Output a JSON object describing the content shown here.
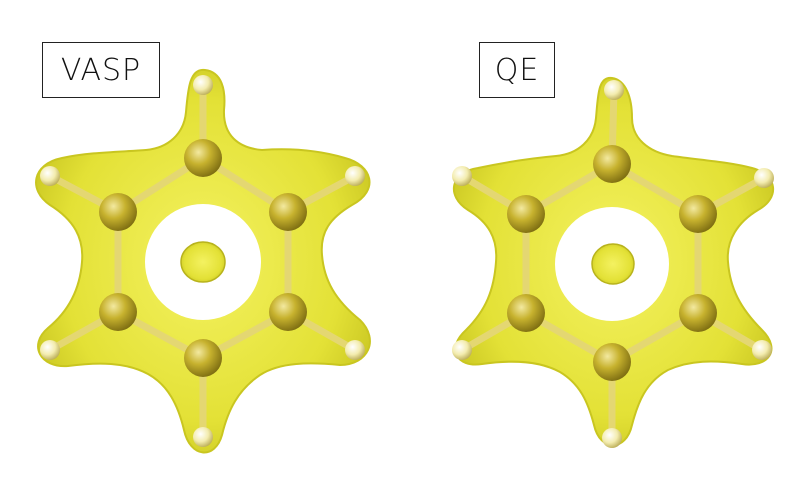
{
  "panels": [
    {
      "label": "VASP",
      "ring": "vasp"
    },
    {
      "label": "QE",
      "ring": "qe"
    }
  ],
  "colors": {
    "isosurface": "#eaea3c",
    "isosurface_shade": "#c9c620",
    "carbon_atom": "#c7b22e",
    "hydrogen_atom": "#f5f0b4",
    "bond": "#e0d36a",
    "background": "#ffffff"
  }
}
